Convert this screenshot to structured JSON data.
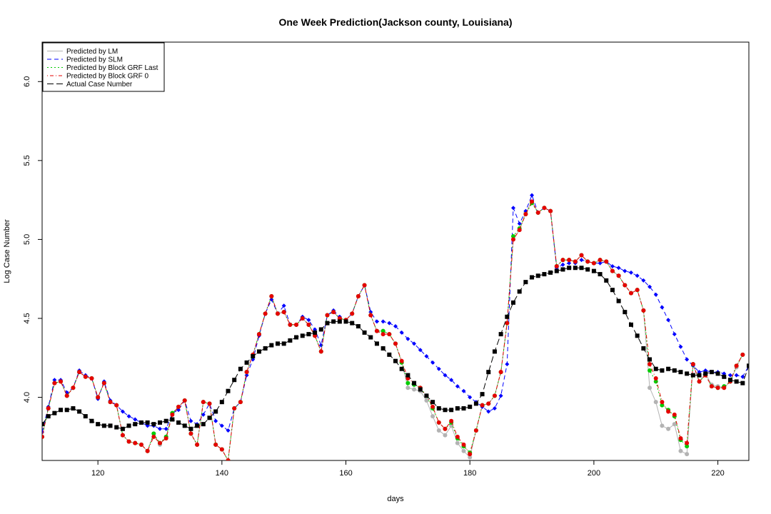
{
  "chart_data": {
    "type": "line",
    "title": "One Week Prediction(Jackson county, Louisiana)",
    "xlabel": "days",
    "ylabel": "Log Case Number",
    "xlim": [
      111,
      225
    ],
    "ylim": [
      3.6,
      6.25
    ],
    "xticks": [
      120,
      140,
      160,
      180,
      200,
      220
    ],
    "yticks": [
      4.0,
      4.5,
      5.0,
      5.5,
      6.0
    ],
    "ytick_labels": [
      "4.0",
      "4.5",
      "5.0",
      "5.5",
      "6.0"
    ],
    "legend_position": "top-left",
    "x_start": 111,
    "series": [
      {
        "name": "Predicted by LM",
        "color": "#b3b3b3",
        "line": "solid",
        "marker": "circle",
        "values": [
          3.75,
          3.93,
          4.09,
          4.1,
          4.01,
          4.06,
          4.16,
          4.13,
          4.12,
          4.0,
          4.09,
          3.97,
          3.95,
          3.76,
          3.72,
          3.71,
          3.7,
          3.66,
          3.77,
          3.7,
          3.75,
          3.9,
          3.94,
          3.98,
          3.77,
          3.7,
          3.97,
          3.96,
          3.7,
          3.67,
          3.6,
          3.93,
          3.97,
          4.16,
          4.27,
          4.4,
          4.53,
          4.64,
          4.53,
          4.54,
          4.46,
          4.46,
          4.5,
          4.46,
          4.39,
          4.29,
          4.52,
          4.54,
          4.5,
          4.49,
          4.53,
          4.64,
          4.71,
          4.52,
          4.42,
          4.42,
          4.4,
          4.34,
          4.22,
          4.06,
          4.05,
          4.04,
          3.98,
          3.88,
          3.79,
          3.76,
          3.82,
          3.71,
          3.66,
          3.62,
          3.79,
          3.95,
          3.96,
          4.01,
          4.16,
          4.47,
          5.0,
          5.06,
          5.17,
          5.24,
          5.17,
          5.2,
          5.18,
          4.83,
          4.87,
          4.87,
          4.86,
          4.9,
          4.86,
          4.85,
          4.87,
          4.86,
          4.8,
          4.77,
          4.71,
          4.66,
          4.68,
          4.55,
          4.06,
          3.97,
          3.82,
          3.8,
          3.83,
          3.66,
          3.64,
          4.21,
          4.1,
          4.15,
          4.08,
          4.07,
          4.06,
          4.1,
          4.19,
          4.27
        ]
      },
      {
        "name": "Predicted by SLM",
        "color": "#0000ff",
        "line": "dashed",
        "marker": "diamond",
        "values": [
          3.78,
          3.94,
          4.11,
          4.11,
          4.03,
          4.06,
          4.17,
          4.14,
          4.12,
          3.99,
          4.1,
          3.98,
          3.95,
          3.91,
          3.88,
          3.86,
          3.84,
          3.82,
          3.82,
          3.8,
          3.8,
          3.9,
          3.92,
          3.98,
          3.85,
          3.83,
          3.89,
          3.96,
          3.85,
          3.82,
          3.79,
          3.93,
          3.97,
          4.14,
          4.24,
          4.39,
          4.53,
          4.62,
          4.53,
          4.58,
          4.46,
          4.46,
          4.51,
          4.49,
          4.43,
          4.33,
          4.52,
          4.55,
          4.51,
          4.49,
          4.53,
          4.64,
          4.71,
          4.54,
          4.48,
          4.48,
          4.47,
          4.45,
          4.41,
          4.37,
          4.34,
          4.3,
          4.26,
          4.22,
          4.18,
          4.14,
          4.11,
          4.07,
          4.04,
          4.0,
          3.97,
          3.94,
          3.91,
          3.93,
          4.01,
          4.21,
          5.2,
          5.1,
          5.18,
          5.28,
          5.17,
          5.2,
          5.18,
          4.82,
          4.84,
          4.85,
          4.85,
          4.87,
          4.86,
          4.85,
          4.85,
          4.86,
          4.83,
          4.82,
          4.8,
          4.79,
          4.77,
          4.74,
          4.7,
          4.65,
          4.57,
          4.49,
          4.4,
          4.32,
          4.24,
          4.2,
          4.16,
          4.17,
          4.16,
          4.16,
          4.15,
          4.14,
          4.14,
          4.13,
          4.2,
          4.27
        ]
      },
      {
        "name": "Predicted by Block GRF Last",
        "color": "#00cc00",
        "line": "dotted",
        "marker": "circle",
        "values": [
          3.75,
          3.93,
          4.09,
          4.1,
          4.01,
          4.06,
          4.16,
          4.13,
          4.12,
          4.0,
          4.09,
          3.97,
          3.95,
          3.76,
          3.72,
          3.71,
          3.7,
          3.66,
          3.77,
          3.71,
          3.75,
          3.9,
          3.94,
          3.98,
          3.77,
          3.7,
          3.97,
          3.96,
          3.7,
          3.67,
          3.6,
          3.93,
          3.97,
          4.16,
          4.27,
          4.4,
          4.53,
          4.64,
          4.53,
          4.54,
          4.46,
          4.46,
          4.5,
          4.46,
          4.39,
          4.29,
          4.52,
          4.54,
          4.5,
          4.49,
          4.53,
          4.64,
          4.71,
          4.52,
          4.42,
          4.42,
          4.4,
          4.34,
          4.22,
          4.09,
          4.08,
          4.06,
          4.01,
          3.93,
          3.84,
          3.8,
          3.84,
          3.74,
          3.69,
          3.65,
          3.79,
          3.95,
          3.96,
          4.01,
          4.16,
          4.47,
          5.02,
          5.07,
          5.16,
          5.23,
          5.17,
          5.2,
          5.18,
          4.83,
          4.87,
          4.87,
          4.86,
          4.9,
          4.86,
          4.85,
          4.87,
          4.86,
          4.8,
          4.77,
          4.71,
          4.66,
          4.68,
          4.55,
          4.17,
          4.1,
          3.95,
          3.92,
          3.88,
          3.73,
          3.69,
          4.21,
          4.1,
          4.14,
          4.07,
          4.06,
          4.07,
          4.1,
          4.2,
          4.27
        ]
      },
      {
        "name": "Predicted by Block GRF 0",
        "color": "#e60000",
        "line": "dashdot",
        "marker": "circle",
        "values": [
          3.75,
          3.93,
          4.09,
          4.1,
          4.01,
          4.06,
          4.16,
          4.13,
          4.12,
          4.0,
          4.09,
          3.97,
          3.95,
          3.76,
          3.72,
          3.71,
          3.7,
          3.66,
          3.75,
          3.71,
          3.74,
          3.89,
          3.94,
          3.98,
          3.77,
          3.7,
          3.97,
          3.96,
          3.7,
          3.67,
          3.6,
          3.93,
          3.97,
          4.16,
          4.27,
          4.4,
          4.53,
          4.64,
          4.53,
          4.54,
          4.46,
          4.46,
          4.5,
          4.46,
          4.39,
          4.29,
          4.52,
          4.54,
          4.5,
          4.49,
          4.53,
          4.64,
          4.71,
          4.52,
          4.42,
          4.4,
          4.4,
          4.34,
          4.23,
          4.12,
          4.09,
          4.06,
          4.01,
          3.94,
          3.84,
          3.8,
          3.85,
          3.75,
          3.7,
          3.64,
          3.79,
          3.95,
          3.96,
          4.01,
          4.16,
          4.47,
          5.0,
          5.06,
          5.16,
          5.24,
          5.17,
          5.2,
          5.18,
          4.83,
          4.87,
          4.87,
          4.86,
          4.9,
          4.86,
          4.85,
          4.87,
          4.86,
          4.8,
          4.77,
          4.71,
          4.66,
          4.68,
          4.55,
          4.21,
          4.12,
          3.97,
          3.91,
          3.89,
          3.74,
          3.71,
          4.21,
          4.1,
          4.14,
          4.07,
          4.06,
          4.06,
          4.1,
          4.2,
          4.27
        ]
      },
      {
        "name": "Actual Case Number",
        "color": "#000000",
        "line": "longdash",
        "marker": "square",
        "values": [
          3.83,
          3.88,
          3.9,
          3.92,
          3.92,
          3.93,
          3.91,
          3.88,
          3.85,
          3.83,
          3.82,
          3.82,
          3.81,
          3.8,
          3.82,
          3.83,
          3.84,
          3.84,
          3.83,
          3.84,
          3.85,
          3.86,
          3.84,
          3.82,
          3.8,
          3.82,
          3.83,
          3.87,
          3.91,
          3.97,
          4.04,
          4.11,
          4.18,
          4.22,
          4.26,
          4.29,
          4.31,
          4.33,
          4.34,
          4.34,
          4.36,
          4.38,
          4.39,
          4.4,
          4.41,
          4.43,
          4.47,
          4.48,
          4.48,
          4.48,
          4.47,
          4.45,
          4.41,
          4.38,
          4.34,
          4.31,
          4.27,
          4.23,
          4.18,
          4.14,
          4.09,
          4.05,
          4.01,
          3.97,
          3.93,
          3.92,
          3.92,
          3.93,
          3.93,
          3.94,
          3.96,
          4.02,
          4.16,
          4.29,
          4.4,
          4.51,
          4.6,
          4.67,
          4.73,
          4.76,
          4.77,
          4.78,
          4.79,
          4.8,
          4.81,
          4.82,
          4.82,
          4.82,
          4.81,
          4.8,
          4.78,
          4.74,
          4.68,
          4.61,
          4.54,
          4.46,
          4.39,
          4.31,
          4.24,
          4.18,
          4.17,
          4.18,
          4.17,
          4.16,
          4.15,
          4.14,
          4.14,
          4.15,
          4.16,
          4.15,
          4.13,
          4.11,
          4.1,
          4.09,
          4.2,
          4.27
        ]
      }
    ]
  }
}
